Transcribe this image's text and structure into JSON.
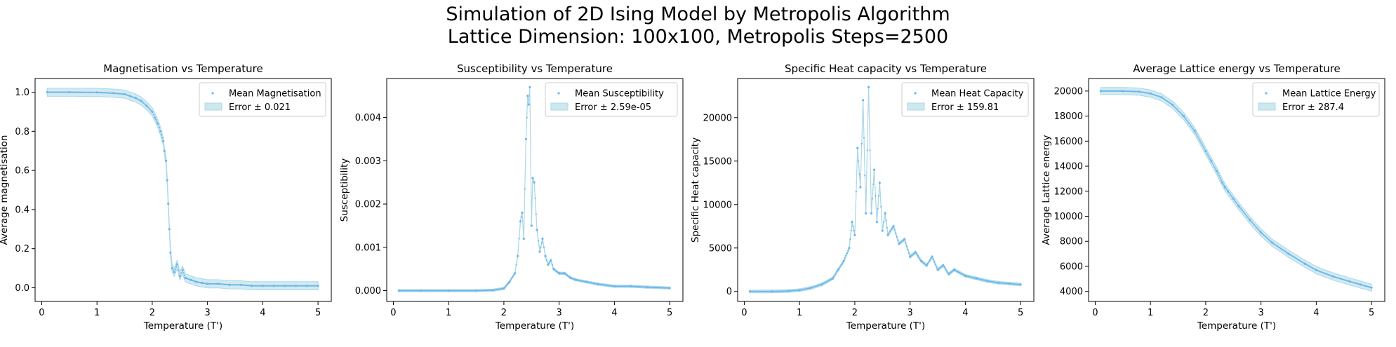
{
  "figure": {
    "suptitle_line1": "Simulation of 2D Ising Model by Metropolis Algorithm",
    "suptitle_line2": "Lattice Dimension: 100x100, Metropolis Steps=2500",
    "point_color": "#6cb8ec",
    "band_color": "#add8e6"
  },
  "chart_data": [
    {
      "type": "scatter",
      "title": "Magnetisation vs Temperature",
      "xlabel": "Temperature (T')",
      "ylabel": "Average magnetisation",
      "xlim": [
        -0.12,
        5.24
      ],
      "ylim": [
        -0.07,
        1.07
      ],
      "xticks": [
        0,
        1,
        2,
        3,
        4,
        5
      ],
      "yticks": [
        0.0,
        0.2,
        0.4,
        0.6,
        0.8,
        1.0
      ],
      "ytick_labels": [
        "0.0",
        "0.2",
        "0.4",
        "0.6",
        "0.8",
        "1.0"
      ],
      "grid": false,
      "legend_position": "upper right",
      "legend": [
        "Mean Magnetisation",
        "Error ± 0.021"
      ],
      "error_band": 0.021,
      "x": [
        0.1,
        0.5,
        1.0,
        1.3,
        1.5,
        1.6,
        1.7,
        1.8,
        1.9,
        2.0,
        2.05,
        2.1,
        2.15,
        2.2,
        2.22,
        2.25,
        2.27,
        2.29,
        2.31,
        2.33,
        2.36,
        2.4,
        2.45,
        2.5,
        2.55,
        2.6,
        2.7,
        2.8,
        2.9,
        3.0,
        3.2,
        3.4,
        3.6,
        3.8,
        4.0,
        4.2,
        4.4,
        4.6,
        4.8,
        5.0
      ],
      "y": [
        1.0,
        1.0,
        0.999,
        0.995,
        0.99,
        0.98,
        0.97,
        0.955,
        0.93,
        0.9,
        0.87,
        0.84,
        0.8,
        0.75,
        0.7,
        0.65,
        0.55,
        0.43,
        0.3,
        0.18,
        0.1,
        0.08,
        0.12,
        0.06,
        0.09,
        0.05,
        0.04,
        0.03,
        0.025,
        0.02,
        0.02,
        0.015,
        0.015,
        0.01,
        0.01,
        0.01,
        0.01,
        0.01,
        0.01,
        0.01
      ]
    },
    {
      "type": "scatter",
      "title": "Susceptibility vs Temperature",
      "xlabel": "Temperature (T')",
      "ylabel": "Susceptibility",
      "xlim": [
        -0.12,
        5.24
      ],
      "ylim": [
        -0.00025,
        0.0049
      ],
      "xticks": [
        0,
        1,
        2,
        3,
        4,
        5
      ],
      "yticks": [
        0.0,
        0.001,
        0.002,
        0.003,
        0.004
      ],
      "ytick_labels": [
        "0.000",
        "0.001",
        "0.002",
        "0.003",
        "0.004"
      ],
      "grid": false,
      "legend_position": "upper right",
      "legend": [
        "Mean Susceptibility",
        "Error ± 2.59e-05"
      ],
      "error_band": 2.59e-05,
      "x": [
        0.1,
        0.5,
        1.0,
        1.5,
        1.8,
        2.0,
        2.1,
        2.2,
        2.25,
        2.3,
        2.33,
        2.36,
        2.4,
        2.43,
        2.45,
        2.47,
        2.5,
        2.52,
        2.55,
        2.6,
        2.65,
        2.7,
        2.75,
        2.8,
        2.85,
        2.9,
        3.0,
        3.1,
        3.2,
        3.3,
        3.5,
        3.7,
        4.0,
        4.3,
        4.6,
        5.0
      ],
      "y": [
        0.0,
        0.0,
        0.0,
        0.0,
        1e-05,
        5e-05,
        0.0002,
        0.0004,
        0.0008,
        0.0016,
        0.0018,
        0.0012,
        0.0035,
        0.0045,
        0.0043,
        0.0047,
        0.0015,
        0.0026,
        0.0025,
        0.0014,
        0.0009,
        0.0012,
        0.0008,
        0.0006,
        0.0007,
        0.0005,
        0.0004,
        0.0004,
        0.0003,
        0.00025,
        0.0002,
        0.00015,
        0.0001,
        0.0001,
        8e-05,
        6e-05
      ]
    },
    {
      "type": "scatter",
      "title": "Specific Heat capacity vs Temperature",
      "xlabel": "Temperature (T')",
      "ylabel": "Specific Heat capacity",
      "xlim": [
        -0.12,
        5.24
      ],
      "ylim": [
        -1150,
        24500
      ],
      "xticks": [
        0,
        1,
        2,
        3,
        4,
        5
      ],
      "yticks": [
        0,
        5000,
        10000,
        15000,
        20000
      ],
      "ytick_labels": [
        "0",
        "5000",
        "10000",
        "15000",
        "20000"
      ],
      "grid": false,
      "legend_position": "upper right",
      "legend": [
        "Mean Heat Capacity",
        "Error ± 159.81"
      ],
      "error_band": 159.81,
      "x": [
        0.1,
        0.5,
        0.8,
        1.0,
        1.2,
        1.4,
        1.6,
        1.7,
        1.8,
        1.9,
        1.95,
        2.0,
        2.05,
        2.1,
        2.15,
        2.2,
        2.25,
        2.3,
        2.35,
        2.4,
        2.45,
        2.5,
        2.55,
        2.6,
        2.7,
        2.8,
        2.9,
        3.0,
        3.1,
        3.2,
        3.3,
        3.4,
        3.5,
        3.6,
        3.7,
        3.8,
        4.0,
        4.2,
        4.4,
        4.6,
        4.8,
        5.0
      ],
      "y": [
        0,
        0,
        50,
        150,
        400,
        800,
        1500,
        2500,
        3500,
        5000,
        8000,
        6500,
        16500,
        12000,
        22000,
        9000,
        23500,
        9000,
        14000,
        8000,
        12500,
        7000,
        9000,
        6500,
        7500,
        5500,
        6000,
        4000,
        4500,
        3500,
        3000,
        4000,
        2500,
        3000,
        2000,
        2500,
        1800,
        1500,
        1200,
        1000,
        900,
        800
      ]
    },
    {
      "type": "scatter",
      "title": "Average Lattice energy vs Temperature",
      "xlabel": "Temperature (T')",
      "ylabel": "Average Lattice energy",
      "xlim": [
        -0.12,
        5.24
      ],
      "ylim": [
        3200,
        21000
      ],
      "xticks": [
        0,
        1,
        2,
        3,
        4,
        5
      ],
      "yticks": [
        4000,
        6000,
        8000,
        10000,
        12000,
        14000,
        16000,
        18000,
        20000
      ],
      "ytick_labels": [
        "4000",
        "6000",
        "8000",
        "10000",
        "12000",
        "14000",
        "16000",
        "18000",
        "20000"
      ],
      "grid": false,
      "legend_position": "upper right",
      "legend": [
        "Mean Lattice Energy",
        "Error ± 287.4"
      ],
      "error_band": 287.4,
      "x": [
        0.1,
        0.5,
        0.8,
        1.0,
        1.2,
        1.4,
        1.6,
        1.8,
        2.0,
        2.1,
        2.2,
        2.3,
        2.35,
        2.4,
        2.5,
        2.6,
        2.8,
        3.0,
        3.2,
        3.5,
        3.8,
        4.0,
        4.3,
        4.6,
        4.8,
        5.0
      ],
      "y": [
        20000,
        20000,
        19950,
        19800,
        19500,
        18900,
        18000,
        16800,
        15200,
        14400,
        13600,
        12700,
        12300,
        12000,
        11400,
        10800,
        9700,
        8700,
        7900,
        7000,
        6200,
        5700,
        5200,
        4800,
        4550,
        4300
      ]
    }
  ]
}
